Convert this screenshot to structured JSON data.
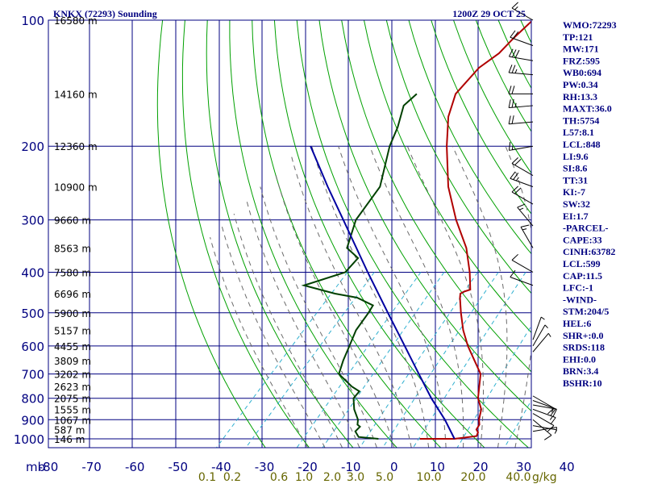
{
  "header": {
    "station": "KNKX (72293) Sounding",
    "time": "1200Z 29 OCT 25"
  },
  "chart_data": {
    "type": "line",
    "title": "KNKX (72293) Sounding",
    "pressure_ticks": [
      100,
      200,
      300,
      400,
      500,
      600,
      700,
      800,
      900,
      1000
    ],
    "pressure_tick_labels": [
      "100",
      "200",
      "300",
      "400",
      "500",
      "600",
      "700",
      "800",
      "900",
      "1000"
    ],
    "pressure_unit_label": "mb",
    "temp_ticks": [
      -80,
      -70,
      -60,
      -50,
      -40,
      -30,
      -20,
      -10,
      0,
      10,
      20,
      30,
      40
    ],
    "temp_tick_labels": [
      "-80",
      "-70",
      "-60",
      "-50",
      "-40",
      "-30",
      "-20",
      "-10",
      "0",
      "10",
      "20",
      "30",
      "40"
    ],
    "height_labels": [
      {
        "p": 100,
        "label": "16580 m"
      },
      {
        "p": 150,
        "label": "14160 m"
      },
      {
        "p": 200,
        "label": "12360 m"
      },
      {
        "p": 250,
        "label": "10900 m"
      },
      {
        "p": 300,
        "label": "9660 m"
      },
      {
        "p": 350,
        "label": "8563 m"
      },
      {
        "p": 400,
        "label": "7580 m"
      },
      {
        "p": 450,
        "label": "6696 m"
      },
      {
        "p": 500,
        "label": "5900 m"
      },
      {
        "p": 550,
        "label": "5157 m"
      },
      {
        "p": 600,
        "label": "4455 m"
      },
      {
        "p": 650,
        "label": "3809 m"
      },
      {
        "p": 700,
        "label": "3202 m"
      },
      {
        "p": 750,
        "label": "2623 m"
      },
      {
        "p": 800,
        "label": "2075 m"
      },
      {
        "p": 850,
        "label": "1555 m"
      },
      {
        "p": 900,
        "label": "1067 m"
      },
      {
        "p": 950,
        "label": "587 m"
      },
      {
        "p": 1000,
        "label": "146 m"
      }
    ],
    "mixing_ratio_labels": [
      "0.1",
      "0.2",
      "0.6",
      "1.0",
      "2.0",
      "3.0",
      "5.0",
      "10.0",
      "20.0",
      "40.0"
    ],
    "mixing_ratio_unit": "g/kg",
    "series": [
      {
        "name": "Temperature",
        "color": "#b00000",
        "points": [
          [
            1000,
            4.0
          ],
          [
            1000,
            12.0
          ],
          [
            985,
            16.5
          ],
          [
            965,
            16.0
          ],
          [
            950,
            15.0
          ],
          [
            925,
            14.6
          ],
          [
            900,
            13.4
          ],
          [
            850,
            11.6
          ],
          [
            800,
            8.4
          ],
          [
            700,
            3.6
          ],
          [
            600,
            -5.6
          ],
          [
            550,
            -10.2
          ],
          [
            500,
            -14.6
          ],
          [
            460,
            -18.2
          ],
          [
            450,
            -19.0
          ],
          [
            445,
            -18.6
          ],
          [
            440,
            -17.6
          ],
          [
            400,
            -21.6
          ],
          [
            350,
            -27.8
          ],
          [
            300,
            -36.4
          ],
          [
            250,
            -45.6
          ],
          [
            200,
            -55.0
          ],
          [
            170,
            -61.2
          ],
          [
            150,
            -64.6
          ],
          [
            130,
            -65.0
          ],
          [
            120,
            -63.6
          ],
          [
            110,
            -63.6
          ],
          [
            100,
            -63.2
          ]
        ]
      },
      {
        "name": "Dew Point",
        "color": "#004000",
        "points": [
          [
            1000,
            -5.6
          ],
          [
            990,
            -10.6
          ],
          [
            960,
            -12.6
          ],
          [
            935,
            -12.6
          ],
          [
            925,
            -13.6
          ],
          [
            900,
            -14.6
          ],
          [
            850,
            -17.8
          ],
          [
            800,
            -20.4
          ],
          [
            770,
            -20.6
          ],
          [
            750,
            -23.4
          ],
          [
            700,
            -29.2
          ],
          [
            650,
            -31.2
          ],
          [
            600,
            -33.0
          ],
          [
            550,
            -35.0
          ],
          [
            500,
            -36.0
          ],
          [
            480,
            -36.6
          ],
          [
            460,
            -42.0
          ],
          [
            450,
            -48.0
          ],
          [
            430,
            -57.0
          ],
          [
            400,
            -50.4
          ],
          [
            370,
            -50.6
          ],
          [
            350,
            -55.4
          ],
          [
            300,
            -59.6
          ],
          [
            250,
            -61.4
          ],
          [
            200,
            -68.2
          ],
          [
            180,
            -70.6
          ],
          [
            160,
            -74.0
          ],
          [
            150,
            -73.6
          ]
        ]
      },
      {
        "name": "Parcel",
        "color": "#0000a0",
        "points": [
          [
            1000,
            12.0
          ],
          [
            900,
            5.5
          ],
          [
            800,
            -2.4
          ],
          [
            700,
            -10.7
          ],
          [
            600,
            -20.2
          ],
          [
            500,
            -31.5
          ],
          [
            400,
            -45.2
          ],
          [
            300,
            -62.5
          ],
          [
            250,
            -73.5
          ],
          [
            200,
            -86.5
          ]
        ]
      }
    ],
    "indices": [
      "WMO:72293",
      "TP:121",
      "MW:171",
      "FRZ:595",
      "WB0:694",
      "PW:0.34",
      "RH:13.3",
      "MAXT:36.0",
      "TH:5754",
      "L57:8.1",
      "LCL:848",
      "LI:9.6",
      "SI:8.6",
      "TT:31",
      "KI:-7",
      "SW:32",
      "EI:1.7",
      "-PARCEL-",
      "CAPE:33",
      "CINH:63782",
      "LCL:599",
      "CAP:11.5",
      "LFC:-1",
      "-WIND-",
      "STM:204/5",
      "HEL:6",
      "SHR+:0.0",
      "SRDS:118",
      "EHI:0.0",
      "BRN:3.4",
      "BSHR:10"
    ],
    "wind_barbs": [
      {
        "p": 100,
        "dir": 300,
        "spd": 15
      },
      {
        "p": 115,
        "dir": 290,
        "spd": 20
      },
      {
        "p": 125,
        "dir": 280,
        "spd": 30
      },
      {
        "p": 135,
        "dir": 275,
        "spd": 25
      },
      {
        "p": 150,
        "dir": 270,
        "spd": 20
      },
      {
        "p": 160,
        "dir": 265,
        "spd": 25
      },
      {
        "p": 175,
        "dir": 265,
        "spd": 20
      },
      {
        "p": 200,
        "dir": 260,
        "spd": 15
      },
      {
        "p": 235,
        "dir": 300,
        "spd": 20
      },
      {
        "p": 250,
        "dir": 290,
        "spd": 25
      },
      {
        "p": 275,
        "dir": 300,
        "spd": 20
      },
      {
        "p": 310,
        "dir": 320,
        "spd": 15
      },
      {
        "p": 350,
        "dir": 330,
        "spd": 15
      },
      {
        "p": 400,
        "dir": 300,
        "spd": 10
      },
      {
        "p": 430,
        "dir": 290,
        "spd": 10
      },
      {
        "p": 580,
        "dir": 20,
        "spd": 5
      },
      {
        "p": 600,
        "dir": 30,
        "spd": 5
      },
      {
        "p": 620,
        "dir": 40,
        "spd": 5
      },
      {
        "p": 790,
        "dir": 120,
        "spd": 10
      },
      {
        "p": 810,
        "dir": 110,
        "spd": 10
      },
      {
        "p": 830,
        "dir": 100,
        "spd": 15
      },
      {
        "p": 850,
        "dir": 110,
        "spd": 15
      },
      {
        "p": 870,
        "dir": 120,
        "spd": 10
      },
      {
        "p": 900,
        "dir": 130,
        "spd": 10
      },
      {
        "p": 930,
        "dir": 100,
        "spd": 5
      },
      {
        "p": 960,
        "dir": 80,
        "spd": 5
      }
    ]
  },
  "colors": {
    "grid": "#000080",
    "dry_adiabat": "#00a000",
    "moist_adiabat": "#6a6a6a",
    "mixing_ratio": "#30b0d0"
  }
}
